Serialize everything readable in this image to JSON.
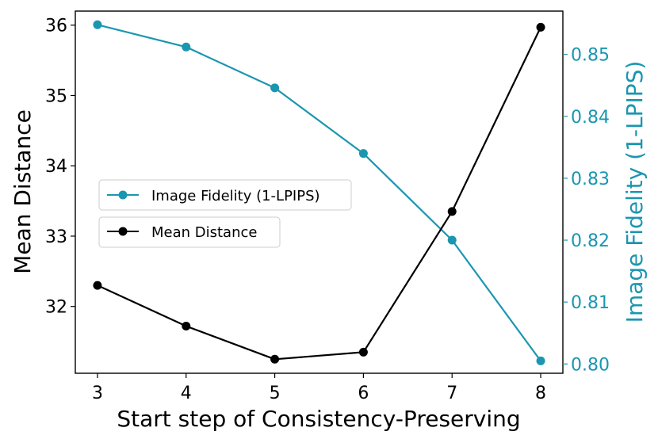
{
  "chart_data": {
    "type": "line",
    "x": [
      3,
      4,
      5,
      6,
      7,
      8
    ],
    "xlabel": "Start step of Consistency-Preserving",
    "xticks": [
      "3",
      "4",
      "5",
      "6",
      "7",
      "8"
    ],
    "xlim": [
      2.75,
      8.25
    ],
    "left_axis": {
      "label": "Mean Distance",
      "ylim": [
        31.05,
        36.2
      ],
      "ticks": [
        32,
        33,
        34,
        35,
        36
      ],
      "tick_labels": [
        "32",
        "33",
        "34",
        "35",
        "36"
      ],
      "color": "#000000"
    },
    "right_axis": {
      "label": "Image Fidelity (1-LPIPS)",
      "ylim": [
        0.7985,
        0.857
      ],
      "ticks": [
        0.8,
        0.81,
        0.82,
        0.83,
        0.84,
        0.85
      ],
      "tick_labels": [
        "0.80",
        "0.81",
        "0.82",
        "0.83",
        "0.84",
        "0.85"
      ],
      "color": "#1a96b0"
    },
    "series": [
      {
        "name": "Image Fidelity (1-LPIPS)",
        "axis": "right",
        "color": "#1a96b0",
        "values": [
          0.8548,
          0.8512,
          0.8446,
          0.834,
          0.82,
          0.8005
        ]
      },
      {
        "name": "Mean Distance",
        "axis": "left",
        "color": "#000000",
        "values": [
          32.3,
          31.72,
          31.25,
          31.35,
          33.35,
          35.97
        ]
      }
    ],
    "legend": {
      "placement": "center-left",
      "entries": [
        "Image Fidelity (1-LPIPS)",
        "Mean Distance"
      ]
    }
  }
}
